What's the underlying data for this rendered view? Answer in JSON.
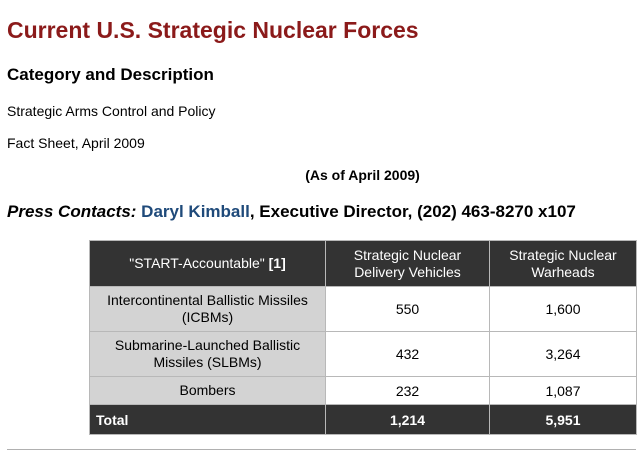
{
  "page": {
    "title": "Current U.S. Strategic Nuclear Forces",
    "section_heading": "Category and Description",
    "category": "Strategic Arms Control and Policy",
    "fact_sheet": "Fact Sheet, April 2009",
    "as_of": "(As of April 2009)"
  },
  "press": {
    "lead": "Press Contacts:",
    "contact_name": "Daryl Kimball",
    "contact_rest": ", Executive Director, (202) 463-8270 x107"
  },
  "table": {
    "header": {
      "category_label": "\"START-Accountable\"",
      "category_note": "[1]",
      "vehicles": "Strategic Nuclear Delivery Vehicles",
      "warheads": "Strategic Nuclear Warheads"
    },
    "rows": [
      {
        "category": "Intercontinental Ballistic Missiles (ICBMs)",
        "vehicles": "550",
        "warheads": "1,600"
      },
      {
        "category": "Submarine-Launched Ballistic Missiles (SLBMs)",
        "vehicles": "432",
        "warheads": "3,264"
      },
      {
        "category": "Bombers",
        "vehicles": "232",
        "warheads": "1,087"
      }
    ],
    "total": {
      "label": "Total",
      "vehicles": "1,214",
      "warheads": "5,951"
    }
  }
}
